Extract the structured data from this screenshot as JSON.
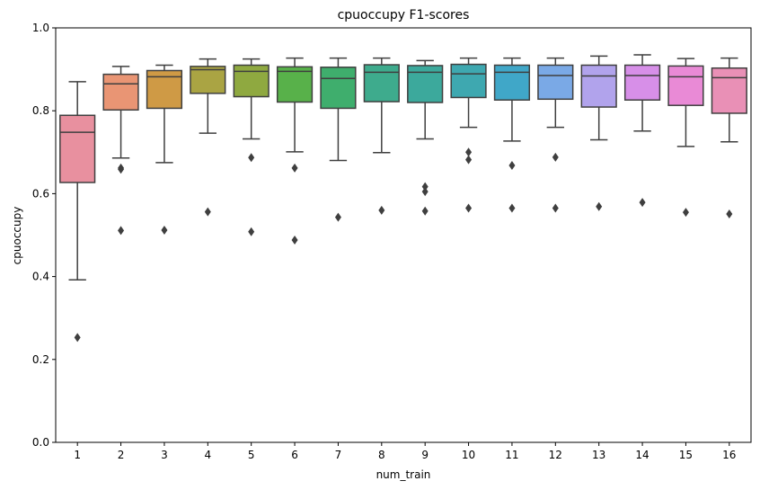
{
  "chart_data": {
    "type": "box",
    "title": "cpuoccupy F1-scores",
    "xlabel": "num_train",
    "ylabel": "cpuoccupy",
    "ylim": [
      0.0,
      1.0
    ],
    "yticks": [
      0.0,
      0.2,
      0.4,
      0.6,
      0.8,
      1.0
    ],
    "ytick_labels": [
      "0.0",
      "0.2",
      "0.4",
      "0.6",
      "0.8",
      "1.0"
    ],
    "grid": false,
    "categories": [
      "1",
      "2",
      "3",
      "4",
      "5",
      "6",
      "7",
      "8",
      "9",
      "10",
      "11",
      "12",
      "13",
      "14",
      "15",
      "16"
    ],
    "boxes": [
      {
        "category": "1",
        "color": "#e8909f",
        "whisker_low": 0.392,
        "q1": 0.627,
        "median": 0.748,
        "q3": 0.789,
        "whisker_high": 0.87,
        "outliers": [
          0.253
        ]
      },
      {
        "category": "2",
        "color": "#e99574",
        "whisker_low": 0.686,
        "q1": 0.802,
        "median": 0.865,
        "q3": 0.888,
        "whisker_high": 0.907,
        "outliers": [
          0.662,
          0.659,
          0.511
        ]
      },
      {
        "category": "3",
        "color": "#cf9a45",
        "whisker_low": 0.675,
        "q1": 0.806,
        "median": 0.882,
        "q3": 0.897,
        "whisker_high": 0.91,
        "outliers": [
          0.512
        ]
      },
      {
        "category": "4",
        "color": "#aaa443",
        "whisker_low": 0.746,
        "q1": 0.842,
        "median": 0.899,
        "q3": 0.907,
        "whisker_high": 0.925,
        "outliers": [
          0.556
        ]
      },
      {
        "category": "5",
        "color": "#8fa940",
        "whisker_low": 0.732,
        "q1": 0.834,
        "median": 0.895,
        "q3": 0.91,
        "whisker_high": 0.925,
        "outliers": [
          0.687,
          0.508
        ]
      },
      {
        "category": "6",
        "color": "#58b14a",
        "whisker_low": 0.701,
        "q1": 0.821,
        "median": 0.895,
        "q3": 0.906,
        "whisker_high": 0.927,
        "outliers": [
          0.662,
          0.488
        ]
      },
      {
        "category": "7",
        "color": "#3fae6d",
        "whisker_low": 0.68,
        "q1": 0.806,
        "median": 0.878,
        "q3": 0.905,
        "whisker_high": 0.927,
        "outliers": [
          0.543
        ]
      },
      {
        "category": "8",
        "color": "#3eab8d",
        "whisker_low": 0.699,
        "q1": 0.822,
        "median": 0.893,
        "q3": 0.911,
        "whisker_high": 0.927,
        "outliers": [
          0.56
        ]
      },
      {
        "category": "9",
        "color": "#3ca99c",
        "whisker_low": 0.732,
        "q1": 0.82,
        "median": 0.893,
        "q3": 0.909,
        "whisker_high": 0.921,
        "outliers": [
          0.617,
          0.605,
          0.558
        ]
      },
      {
        "category": "10",
        "color": "#3ea8b0",
        "whisker_low": 0.76,
        "q1": 0.832,
        "median": 0.889,
        "q3": 0.912,
        "whisker_high": 0.927,
        "outliers": [
          0.7,
          0.682,
          0.565
        ]
      },
      {
        "category": "11",
        "color": "#40a7c8",
        "whisker_low": 0.727,
        "q1": 0.826,
        "median": 0.893,
        "q3": 0.91,
        "whisker_high": 0.927,
        "outliers": [
          0.668,
          0.565
        ]
      },
      {
        "category": "12",
        "color": "#7aa9e6",
        "whisker_low": 0.76,
        "q1": 0.828,
        "median": 0.885,
        "q3": 0.91,
        "whisker_high": 0.927,
        "outliers": [
          0.688,
          0.565
        ]
      },
      {
        "category": "13",
        "color": "#b1a3ec",
        "whisker_low": 0.73,
        "q1": 0.809,
        "median": 0.884,
        "q3": 0.91,
        "whisker_high": 0.932,
        "outliers": [
          0.569
        ]
      },
      {
        "category": "14",
        "color": "#d78fe8",
        "whisker_low": 0.751,
        "q1": 0.826,
        "median": 0.885,
        "q3": 0.91,
        "whisker_high": 0.935,
        "outliers": [
          0.579
        ]
      },
      {
        "category": "15",
        "color": "#e98ad6",
        "whisker_low": 0.714,
        "q1": 0.813,
        "median": 0.882,
        "q3": 0.908,
        "whisker_high": 0.926,
        "outliers": [
          0.555
        ]
      },
      {
        "category": "16",
        "color": "#e990b6",
        "whisker_low": 0.725,
        "q1": 0.794,
        "median": 0.88,
        "q3": 0.903,
        "whisker_high": 0.927,
        "outliers": [
          0.551
        ]
      }
    ]
  }
}
